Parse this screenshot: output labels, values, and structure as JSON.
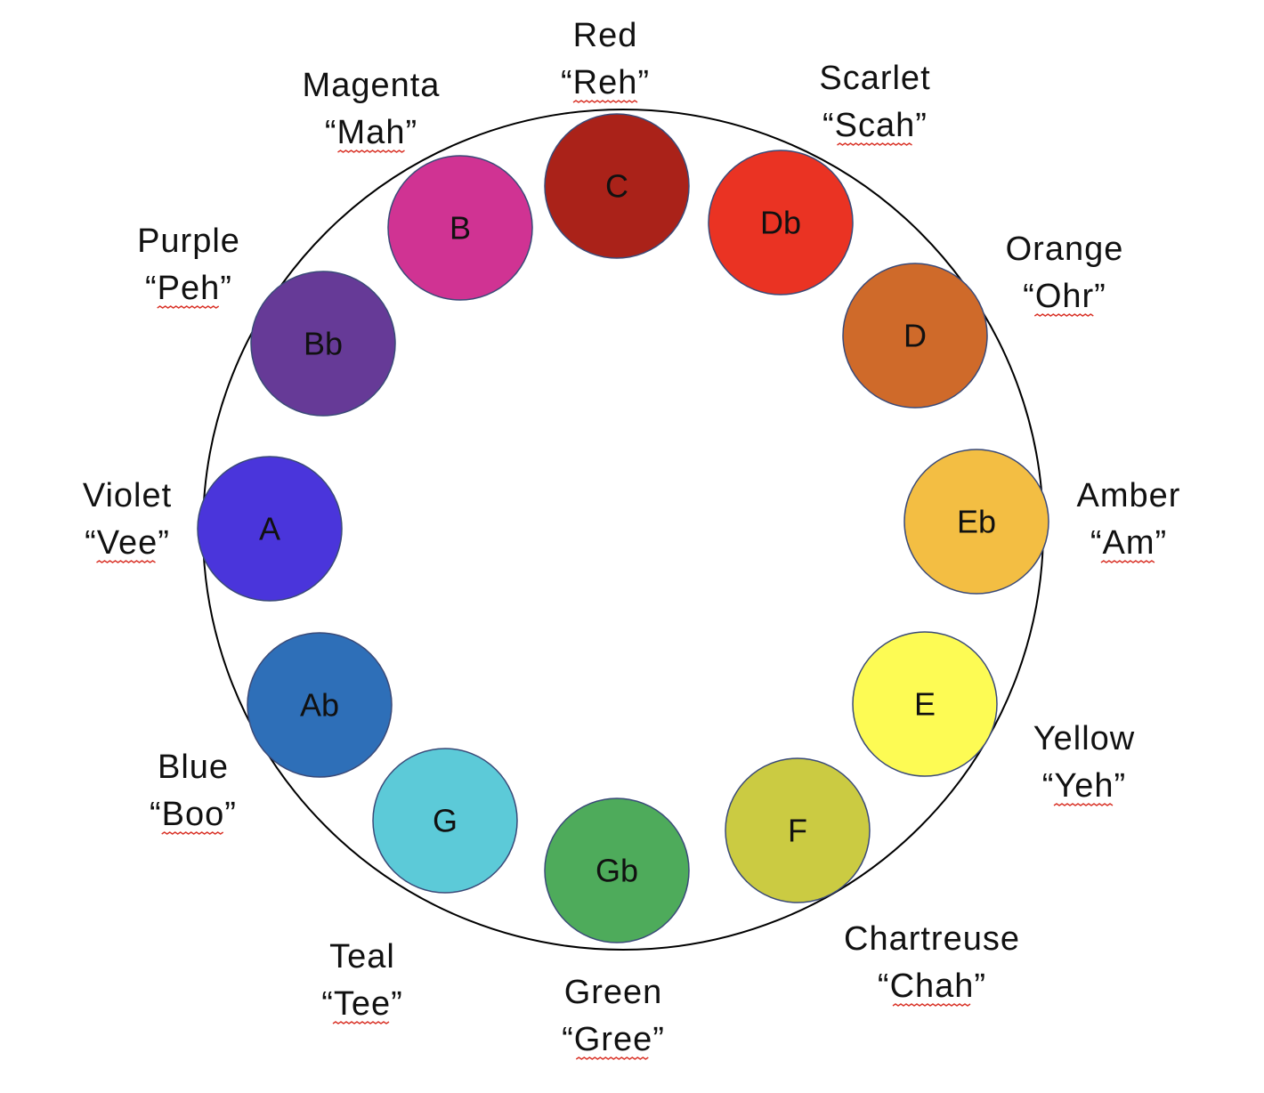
{
  "notes": [
    {
      "note": "C",
      "color_name": "Red",
      "syllable": "“Reh”",
      "fill": "#AA2219"
    },
    {
      "note": "Db",
      "color_name": "Scarlet",
      "syllable": "“Scah”",
      "fill": "#EA3323"
    },
    {
      "note": "D",
      "color_name": "Orange",
      "syllable": "“Ohr”",
      "fill": "#CF6A2A"
    },
    {
      "note": "Eb",
      "color_name": "Amber",
      "syllable": "“Am”",
      "fill": "#F3BE43"
    },
    {
      "note": "E",
      "color_name": "Yellow",
      "syllable": "“Yeh”",
      "fill": "#FDFB54"
    },
    {
      "note": "F",
      "color_name": "Chartreuse",
      "syllable": "“Chah”",
      "fill": "#CBCB42"
    },
    {
      "note": "Gb",
      "color_name": "Green",
      "syllable": "“Gree”",
      "fill": "#4EAB5B"
    },
    {
      "note": "G",
      "color_name": "Teal",
      "syllable": "“Tee”",
      "fill": "#5CCAD8"
    },
    {
      "note": "Ab",
      "color_name": "Blue",
      "syllable": "“Boo”",
      "fill": "#2E6FB8"
    },
    {
      "note": "A",
      "color_name": "Violet",
      "syllable": "“Vee”",
      "fill": "#4A35DB"
    },
    {
      "note": "Bb",
      "color_name": "Purple",
      "syllable": "“Peh”",
      "fill": "#663A97"
    },
    {
      "note": "B",
      "color_name": "Magenta",
      "syllable": "“Mah”",
      "fill": "#D03393"
    }
  ],
  "colors": {
    "ring_stroke": "#000000",
    "circle_stroke": "#3A4A78",
    "spellcheck_underline": "#d93025"
  }
}
